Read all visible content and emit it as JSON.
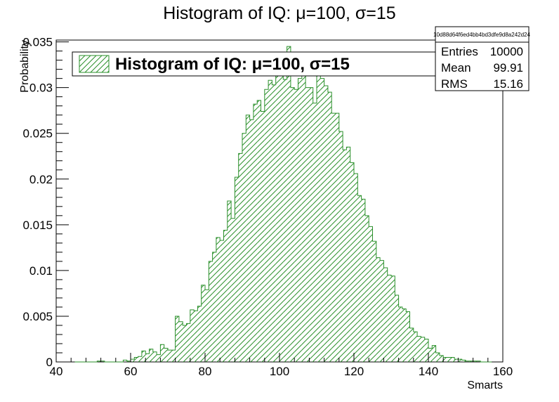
{
  "chart_data": {
    "type": "bar",
    "title": "Histogram of IQ: μ=100, σ=15",
    "xlabel": "Smarts",
    "ylabel": "Probability",
    "xlim": [
      40,
      160
    ],
    "ylim": [
      0,
      0.0352
    ],
    "x_ticks": [
      "40",
      "60",
      "80",
      "100",
      "120",
      "140",
      "160"
    ],
    "y_ticks": [
      "0",
      "0.005",
      "0.01",
      "0.015",
      "0.02",
      "0.025",
      "0.03",
      "0.035"
    ],
    "bin_edges_range": [
      45.0,
      157.0
    ],
    "values": [
      0,
      0,
      0,
      0,
      0,
      0,
      0.0001,
      0.0001,
      0,
      0,
      0,
      0,
      0,
      0.0002,
      0.0001,
      0.0003,
      0.0005,
      0.0006,
      0.0012,
      0.0009,
      0.0014,
      0.0011,
      0.0008,
      0.0019,
      0.0015,
      0.0013,
      0.0013,
      0.005,
      0.0044,
      0.004,
      0.0042,
      0.0057,
      0.0056,
      0.0061,
      0.0084,
      0.0079,
      0.011,
      0.012,
      0.0136,
      0.0133,
      0.0144,
      0.0176,
      0.0157,
      0.0202,
      0.0228,
      0.025,
      0.027,
      0.0265,
      0.0282,
      0.0286,
      0.0274,
      0.0298,
      0.0308,
      0.0303,
      0.0323,
      0.0328,
      0.0309,
      0.0345,
      0.03,
      0.0298,
      0.031,
      0.0331,
      0.03,
      0.03,
      0.0283,
      0.0321,
      0.031,
      0.0302,
      0.0295,
      0.0272,
      0.0272,
      0.0252,
      0.0232,
      0.0235,
      0.0218,
      0.0206,
      0.0182,
      0.0178,
      0.016,
      0.0148,
      0.0132,
      0.0114,
      0.0111,
      0.0103,
      0.0095,
      0.0094,
      0.0073,
      0.006,
      0.0058,
      0.0055,
      0.0037,
      0.0033,
      0.0028,
      0.0027,
      0.0025,
      0.0015,
      0.0018,
      0.001,
      0.0007,
      0.0005,
      0.0005,
      0.0005,
      0.0003,
      0.0003,
      0.0002,
      0.0001,
      0.0001,
      0.0001,
      0.0001,
      0,
      0,
      0
    ],
    "legend": {
      "entries": [
        "Histogram of IQ: μ=100, σ=15"
      ],
      "placement": "top-left"
    },
    "series_color": "#2a8f2a",
    "fill_pattern": "hatched-diagonal",
    "grid": false,
    "stats_box": {
      "id": "10d88d64f6ed4bb4bd3dfe9d8a242d24",
      "rows": [
        {
          "label": "Entries",
          "value": "10000"
        },
        {
          "label": "Mean",
          "value": "99.91"
        },
        {
          "label": "RMS",
          "value": "15.16"
        }
      ]
    }
  }
}
